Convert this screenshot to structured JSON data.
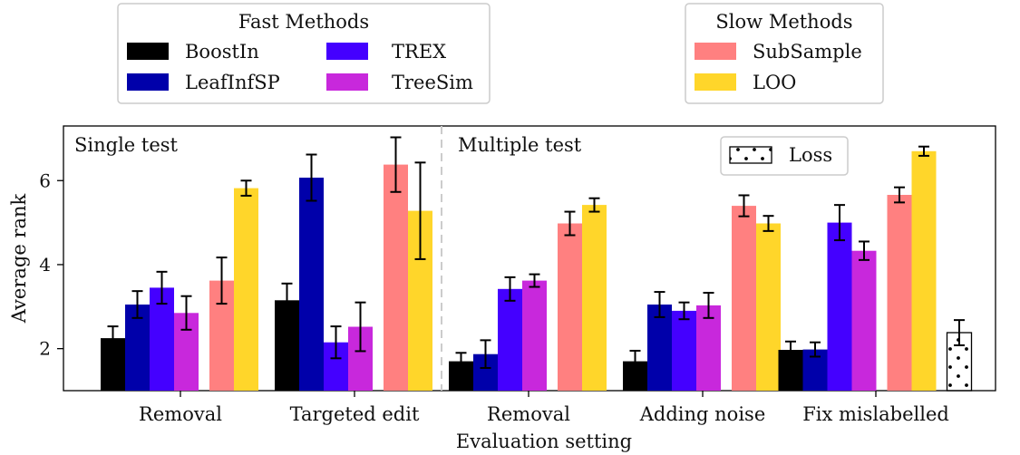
{
  "chart_data": {
    "type": "bar",
    "title": "",
    "xlabel": "Evaluation setting",
    "ylabel": "Average rank",
    "ylim": [
      1.0,
      7.3
    ],
    "yticks": [
      2,
      4,
      6
    ],
    "grid": false,
    "groups": [
      {
        "label": "Removal"
      },
      {
        "label": "Targeted edit"
      },
      {
        "label": "Removal"
      },
      {
        "label": "Adding noise"
      },
      {
        "label": "Fix mislabelled"
      }
    ],
    "panel_labels": [
      {
        "text": "Single test",
        "anchor": "top-left"
      },
      {
        "text": "Multiple test",
        "anchor": "after-divider"
      }
    ],
    "legends": [
      {
        "title": "Fast Methods",
        "position": "top-left",
        "columns": 2,
        "entries": [
          "BoostIn",
          "LeafInfSP",
          "TREX",
          "TreeSim"
        ]
      },
      {
        "title": "Slow Methods",
        "position": "top-right",
        "columns": 1,
        "entries": [
          "SubSample",
          "LOO"
        ]
      },
      {
        "title": "",
        "position": "inside-top-right",
        "columns": 1,
        "entries": [
          "Loss"
        ]
      }
    ],
    "series": [
      {
        "name": "BoostIn",
        "color": "#000000",
        "group": "fast",
        "values": [
          2.25,
          3.15,
          1.7,
          1.7,
          1.97
        ],
        "errors": [
          0.28,
          0.4,
          0.2,
          0.25,
          0.2
        ]
      },
      {
        "name": "LeafInfSP",
        "color": "#0000aa",
        "group": "fast",
        "values": [
          3.05,
          6.07,
          1.87,
          3.05,
          1.98
        ],
        "errors": [
          0.32,
          0.55,
          0.33,
          0.3,
          0.17
        ]
      },
      {
        "name": "TREX",
        "color": "#4400ff",
        "group": "fast",
        "values": [
          3.45,
          2.15,
          3.42,
          2.9,
          5.0
        ],
        "errors": [
          0.38,
          0.38,
          0.28,
          0.2,
          0.42
        ]
      },
      {
        "name": "TreeSim",
        "color": "#c828dc",
        "group": "fast",
        "values": [
          2.85,
          2.52,
          3.62,
          3.03,
          4.33
        ],
        "errors": [
          0.4,
          0.58,
          0.15,
          0.3,
          0.22
        ]
      },
      {
        "name": "SubSample",
        "color": "#ff8080",
        "group": "slow",
        "values": [
          3.62,
          6.38,
          4.98,
          5.4,
          5.66
        ],
        "errors": [
          0.55,
          0.65,
          0.28,
          0.25,
          0.18
        ]
      },
      {
        "name": "LOO",
        "color": "#ffd62a",
        "group": "slow",
        "values": [
          5.82,
          5.28,
          5.42,
          4.98,
          6.7
        ],
        "errors": [
          0.18,
          1.15,
          0.16,
          0.18,
          0.11
        ]
      },
      {
        "name": "Loss",
        "color": "#ffffff",
        "hatch": "dots",
        "group": "other",
        "values": [
          null,
          null,
          null,
          null,
          2.38
        ],
        "errors": [
          null,
          null,
          null,
          null,
          0.3
        ]
      }
    ]
  }
}
